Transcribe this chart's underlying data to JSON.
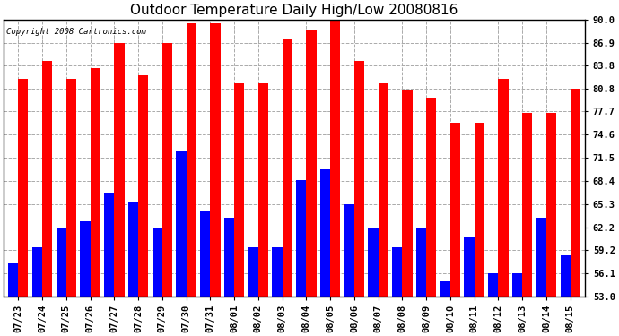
{
  "title": "Outdoor Temperature Daily High/Low 20080816",
  "copyright": "Copyright 2008 Cartronics.com",
  "dates": [
    "07/23",
    "07/24",
    "07/25",
    "07/26",
    "07/27",
    "07/28",
    "07/29",
    "07/30",
    "07/31",
    "08/01",
    "08/02",
    "08/03",
    "08/04",
    "08/05",
    "08/06",
    "08/07",
    "08/08",
    "08/09",
    "08/10",
    "08/11",
    "08/12",
    "08/13",
    "08/14",
    "08/15"
  ],
  "highs": [
    82.0,
    84.5,
    82.0,
    83.5,
    86.8,
    82.5,
    86.8,
    89.5,
    89.5,
    81.5,
    81.5,
    87.5,
    88.5,
    89.8,
    84.5,
    81.5,
    80.5,
    79.5,
    76.2,
    76.2,
    82.0,
    77.5,
    77.5,
    80.8
  ],
  "lows": [
    57.5,
    59.5,
    62.2,
    63.0,
    66.8,
    65.5,
    62.2,
    72.5,
    64.5,
    63.5,
    59.5,
    59.5,
    68.5,
    70.0,
    65.3,
    62.2,
    59.5,
    62.2,
    55.0,
    61.0,
    56.1,
    56.1,
    63.5,
    58.5
  ],
  "bar_width": 0.42,
  "high_color": "#FF0000",
  "low_color": "#0000FF",
  "bg_color": "#FFFFFF",
  "plot_bg_color": "#FFFFFF",
  "grid_color": "#AAAAAA",
  "title_fontsize": 11,
  "tick_fontsize": 7.5,
  "ymin": 53.0,
  "ymax": 90.0,
  "yticks": [
    53.0,
    56.1,
    59.2,
    62.2,
    65.3,
    68.4,
    71.5,
    74.6,
    77.7,
    80.8,
    83.8,
    86.9,
    90.0
  ]
}
